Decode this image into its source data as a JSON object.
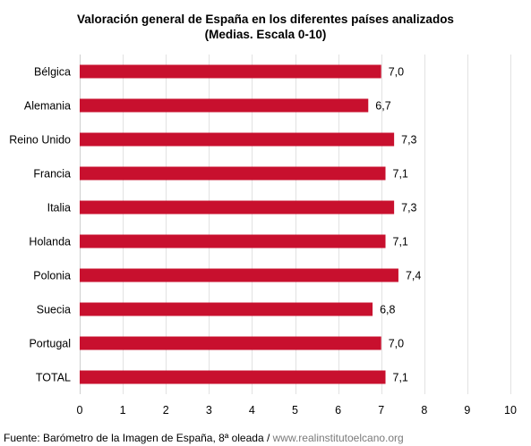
{
  "chart_data": {
    "type": "bar",
    "orientation": "horizontal",
    "title": "Valoración general de España en los diferentes países analizados",
    "subtitle": "(Medias. Escala 0-10)",
    "categories": [
      "Bélgica",
      "Alemania",
      "Reino Unido",
      "Francia",
      "Italia",
      "Holanda",
      "Polonia",
      "Suecia",
      "Portugal",
      "TOTAL"
    ],
    "values": [
      7.0,
      6.7,
      7.3,
      7.1,
      7.3,
      7.1,
      7.4,
      6.8,
      7.0,
      7.1
    ],
    "value_labels": [
      "7,0",
      "6,7",
      "7,3",
      "7,1",
      "7,3",
      "7,1",
      "7,4",
      "6,8",
      "7,0",
      "7,1"
    ],
    "xlim": [
      0,
      10
    ],
    "xticks": [
      0,
      1,
      2,
      3,
      4,
      5,
      6,
      7,
      8,
      9,
      10
    ],
    "grid": "vertical",
    "legend": "none",
    "bar_color": "#c8102e",
    "grid_color": "#e2e2e2"
  },
  "source": {
    "prefix": "Fuente: Barómetro de la Imagen de España, 8ª oleada / ",
    "url": "www.realinstitutoelcano.org"
  }
}
